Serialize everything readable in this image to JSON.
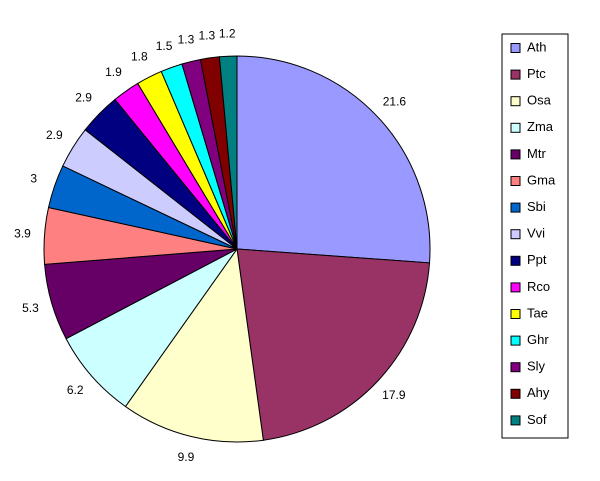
{
  "chart_data": {
    "type": "pie",
    "categories": [
      "Ath",
      "Ptc",
      "Osa",
      "Zma",
      "Mtr",
      "Gma",
      "Sbi",
      "Vvi",
      "Ppt",
      "Rco",
      "Tae",
      "Ghr",
      "Sly",
      "Ahy",
      "Sof"
    ],
    "values": [
      21.6,
      17.9,
      9.9,
      6.2,
      5.3,
      3.9,
      3,
      2.9,
      2.9,
      1.9,
      1.8,
      1.5,
      1.3,
      1.3,
      1.2
    ],
    "colors": [
      "#9999ff",
      "#993366",
      "#ffffcc",
      "#ccffff",
      "#660066",
      "#ff8080",
      "#0066cc",
      "#ccccff",
      "#000080",
      "#ff00ff",
      "#ffff00",
      "#00ffff",
      "#800080",
      "#800000",
      "#008080"
    ],
    "legend": "right"
  }
}
